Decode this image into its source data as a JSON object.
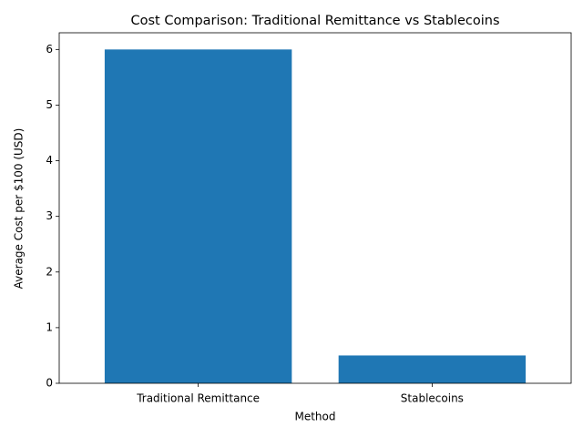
{
  "chart_data": {
    "type": "bar",
    "title": "Cost Comparison: Traditional Remittance vs Stablecoins",
    "x_label": "Method",
    "y_label": "Average Cost per $100 (USD)",
    "categories": [
      "Traditional Remittance",
      "Stablecoins"
    ],
    "values": [
      6,
      0.5
    ],
    "color": "#1f77b4",
    "ylim": [
      0,
      6.3
    ],
    "yticks": [
      0,
      1,
      2,
      3,
      4,
      5,
      6
    ],
    "grid": false
  }
}
